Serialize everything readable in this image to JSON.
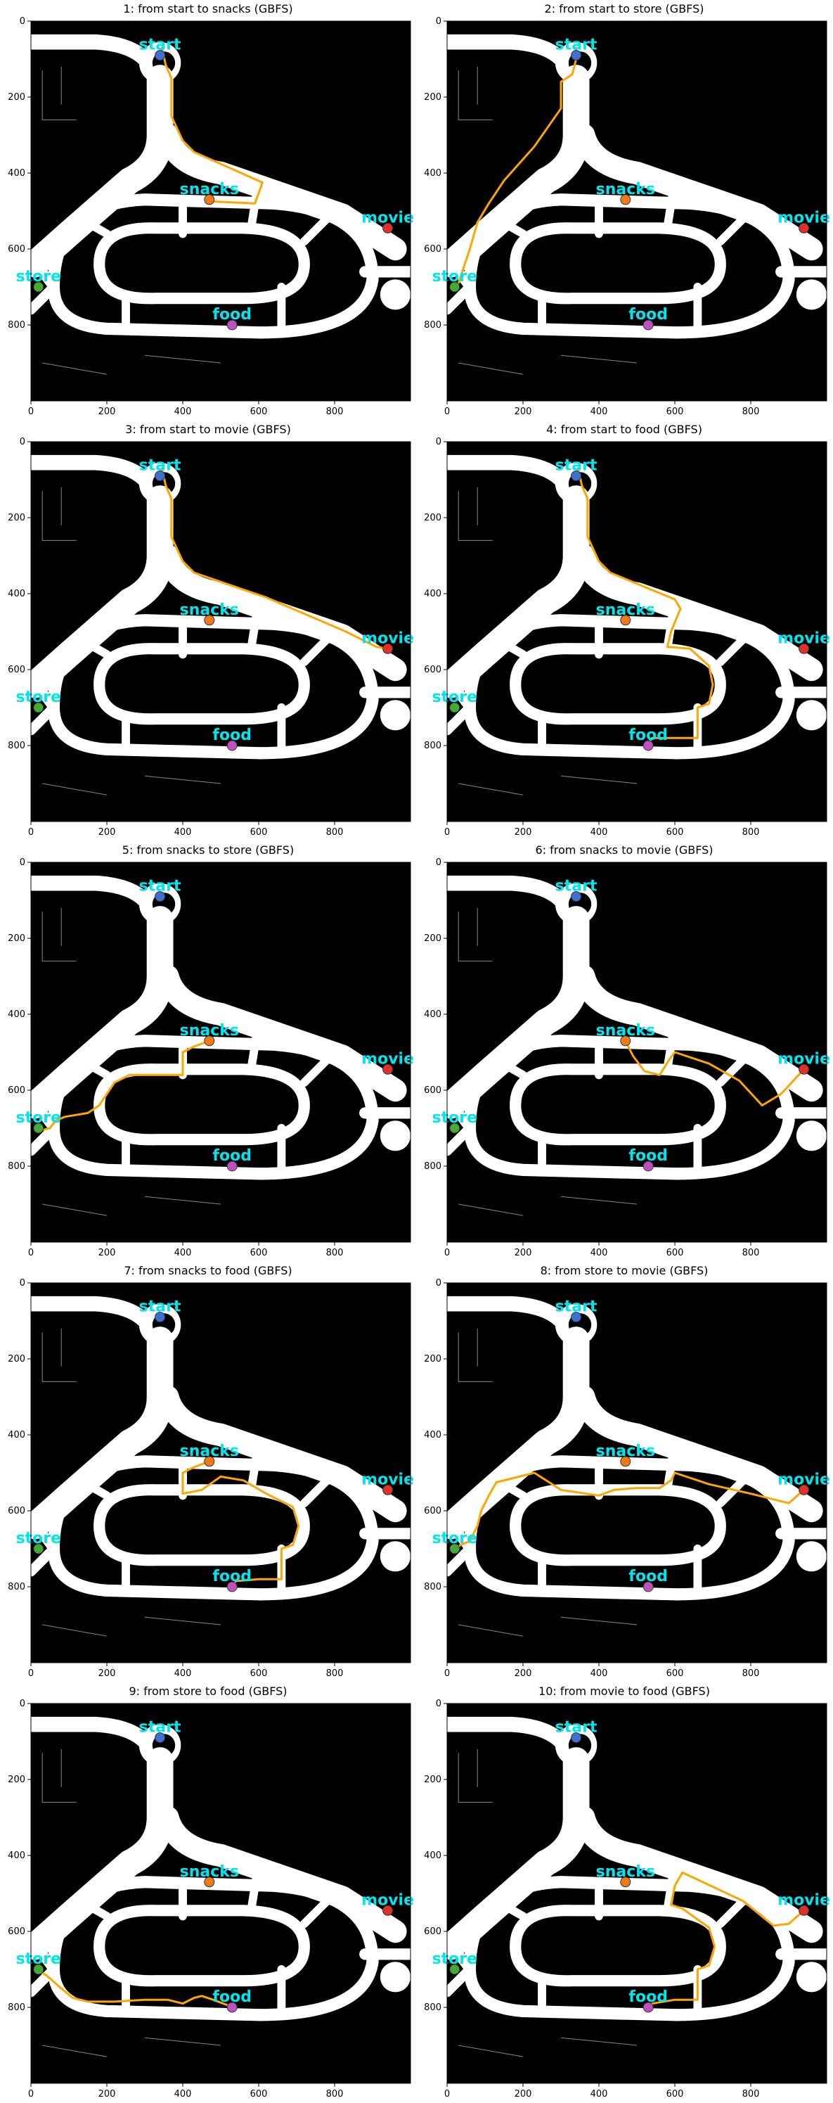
{
  "figure": {
    "panels": [
      {
        "title": "1: from start to snacks (GBFS)",
        "from": "start",
        "to": "snacks",
        "path": [
          [
            340,
            90
          ],
          [
            345,
            70
          ],
          [
            355,
            115
          ],
          [
            370,
            150
          ],
          [
            370,
            250
          ],
          [
            400,
            315
          ],
          [
            430,
            345
          ],
          [
            610,
            425
          ],
          [
            590,
            480
          ],
          [
            480,
            475
          ]
        ]
      },
      {
        "title": "2: from start to store (GBFS)",
        "from": "start",
        "to": "store",
        "path": [
          [
            340,
            90
          ],
          [
            340,
            70
          ],
          [
            335,
            90
          ],
          [
            340,
            100
          ],
          [
            330,
            140
          ],
          [
            300,
            160
          ],
          [
            300,
            230
          ],
          [
            230,
            330
          ],
          [
            150,
            420
          ],
          [
            110,
            480
          ],
          [
            80,
            530
          ],
          [
            60,
            600
          ],
          [
            30,
            690
          ],
          [
            20,
            705
          ]
        ]
      },
      {
        "title": "3: from start to movie (GBFS)",
        "from": "start",
        "to": "movie",
        "path": [
          [
            340,
            90
          ],
          [
            345,
            70
          ],
          [
            355,
            115
          ],
          [
            370,
            150
          ],
          [
            370,
            250
          ],
          [
            400,
            315
          ],
          [
            430,
            345
          ],
          [
            620,
            410
          ],
          [
            830,
            500
          ],
          [
            910,
            540
          ],
          [
            940,
            545
          ]
        ]
      },
      {
        "title": "4: from start to food (GBFS)",
        "from": "start",
        "to": "food",
        "path": [
          [
            340,
            90
          ],
          [
            345,
            70
          ],
          [
            355,
            115
          ],
          [
            370,
            150
          ],
          [
            370,
            250
          ],
          [
            400,
            315
          ],
          [
            430,
            345
          ],
          [
            600,
            415
          ],
          [
            615,
            440
          ],
          [
            590,
            500
          ],
          [
            580,
            540
          ],
          [
            640,
            545
          ],
          [
            690,
            590
          ],
          [
            700,
            640
          ],
          [
            690,
            690
          ],
          [
            660,
            700
          ],
          [
            660,
            780
          ],
          [
            580,
            780
          ],
          [
            540,
            780
          ],
          [
            530,
            795
          ]
        ]
      },
      {
        "title": "5: from snacks to store (GBFS)",
        "from": "snacks",
        "to": "store",
        "path": [
          [
            470,
            470
          ],
          [
            430,
            485
          ],
          [
            400,
            500
          ],
          [
            400,
            560
          ],
          [
            260,
            560
          ],
          [
            220,
            580
          ],
          [
            180,
            640
          ],
          [
            150,
            660
          ],
          [
            90,
            670
          ],
          [
            65,
            680
          ],
          [
            50,
            700
          ],
          [
            30,
            705
          ],
          [
            20,
            700
          ]
        ]
      },
      {
        "title": "6: from snacks to movie (GBFS)",
        "from": "snacks",
        "to": "movie",
        "path": [
          [
            470,
            470
          ],
          [
            490,
            510
          ],
          [
            520,
            550
          ],
          [
            560,
            560
          ],
          [
            585,
            520
          ],
          [
            600,
            500
          ],
          [
            690,
            530
          ],
          [
            770,
            575
          ],
          [
            830,
            640
          ],
          [
            880,
            610
          ],
          [
            940,
            545
          ]
        ]
      },
      {
        "title": "7: from snacks to food (GBFS)",
        "from": "snacks",
        "to": "food",
        "path": [
          [
            470,
            470
          ],
          [
            430,
            485
          ],
          [
            400,
            500
          ],
          [
            400,
            555
          ],
          [
            450,
            545
          ],
          [
            500,
            510
          ],
          [
            560,
            520
          ],
          [
            620,
            555
          ],
          [
            690,
            590
          ],
          [
            705,
            640
          ],
          [
            690,
            690
          ],
          [
            660,
            700
          ],
          [
            660,
            780
          ],
          [
            600,
            780
          ],
          [
            540,
            785
          ],
          [
            530,
            800
          ]
        ]
      },
      {
        "title": "8: from store to movie (GBFS)",
        "from": "store",
        "to": "movie",
        "path": [
          [
            20,
            705
          ],
          [
            35,
            690
          ],
          [
            60,
            680
          ],
          [
            80,
            640
          ],
          [
            90,
            600
          ],
          [
            110,
            560
          ],
          [
            130,
            525
          ],
          [
            230,
            500
          ],
          [
            300,
            545
          ],
          [
            400,
            560
          ],
          [
            440,
            545
          ],
          [
            500,
            540
          ],
          [
            560,
            540
          ],
          [
            590,
            520
          ],
          [
            600,
            500
          ],
          [
            690,
            530
          ],
          [
            800,
            555
          ],
          [
            900,
            580
          ],
          [
            940,
            545
          ]
        ]
      },
      {
        "title": "9: from store to food (GBFS)",
        "from": "store",
        "to": "food",
        "path": [
          [
            20,
            705
          ],
          [
            40,
            715
          ],
          [
            80,
            750
          ],
          [
            110,
            775
          ],
          [
            150,
            785
          ],
          [
            220,
            785
          ],
          [
            300,
            780
          ],
          [
            360,
            780
          ],
          [
            400,
            790
          ],
          [
            430,
            775
          ],
          [
            450,
            770
          ],
          [
            480,
            780
          ],
          [
            520,
            795
          ]
        ]
      },
      {
        "title": "10: from movie to food (GBFS)",
        "from": "movie",
        "to": "food",
        "path": [
          [
            940,
            545
          ],
          [
            900,
            580
          ],
          [
            860,
            585
          ],
          [
            780,
            520
          ],
          [
            620,
            445
          ],
          [
            600,
            480
          ],
          [
            590,
            530
          ],
          [
            620,
            540
          ],
          [
            690,
            590
          ],
          [
            705,
            640
          ],
          [
            690,
            690
          ],
          [
            660,
            700
          ],
          [
            660,
            780
          ],
          [
            600,
            780
          ],
          [
            540,
            790
          ],
          [
            530,
            800
          ]
        ]
      }
    ],
    "axis": {
      "xticks": [
        "0",
        "200",
        "400",
        "600",
        "800"
      ],
      "yticks": [
        "0",
        "200",
        "400",
        "600",
        "800"
      ],
      "xlim": [
        0,
        1000
      ],
      "ylim": [
        1000,
        0
      ]
    },
    "pois": [
      {
        "key": "start",
        "label": "start",
        "x": 340,
        "y": 90,
        "color": "#3f6fd0"
      },
      {
        "key": "snacks",
        "label": "snacks",
        "x": 470,
        "y": 470,
        "color": "#f07a1a"
      },
      {
        "key": "movie",
        "label": "movie",
        "x": 940,
        "y": 545,
        "color": "#e0302a"
      },
      {
        "key": "store",
        "label": "store",
        "x": 20,
        "y": 700,
        "color": "#44aa33"
      },
      {
        "key": "food",
        "label": "food",
        "x": 530,
        "y": 800,
        "color": "#c050c0"
      }
    ],
    "colors": {
      "path": "#ffa500",
      "map_bg": "#000000",
      "corridor": "#ffffff",
      "label": "#00e5ee"
    }
  }
}
